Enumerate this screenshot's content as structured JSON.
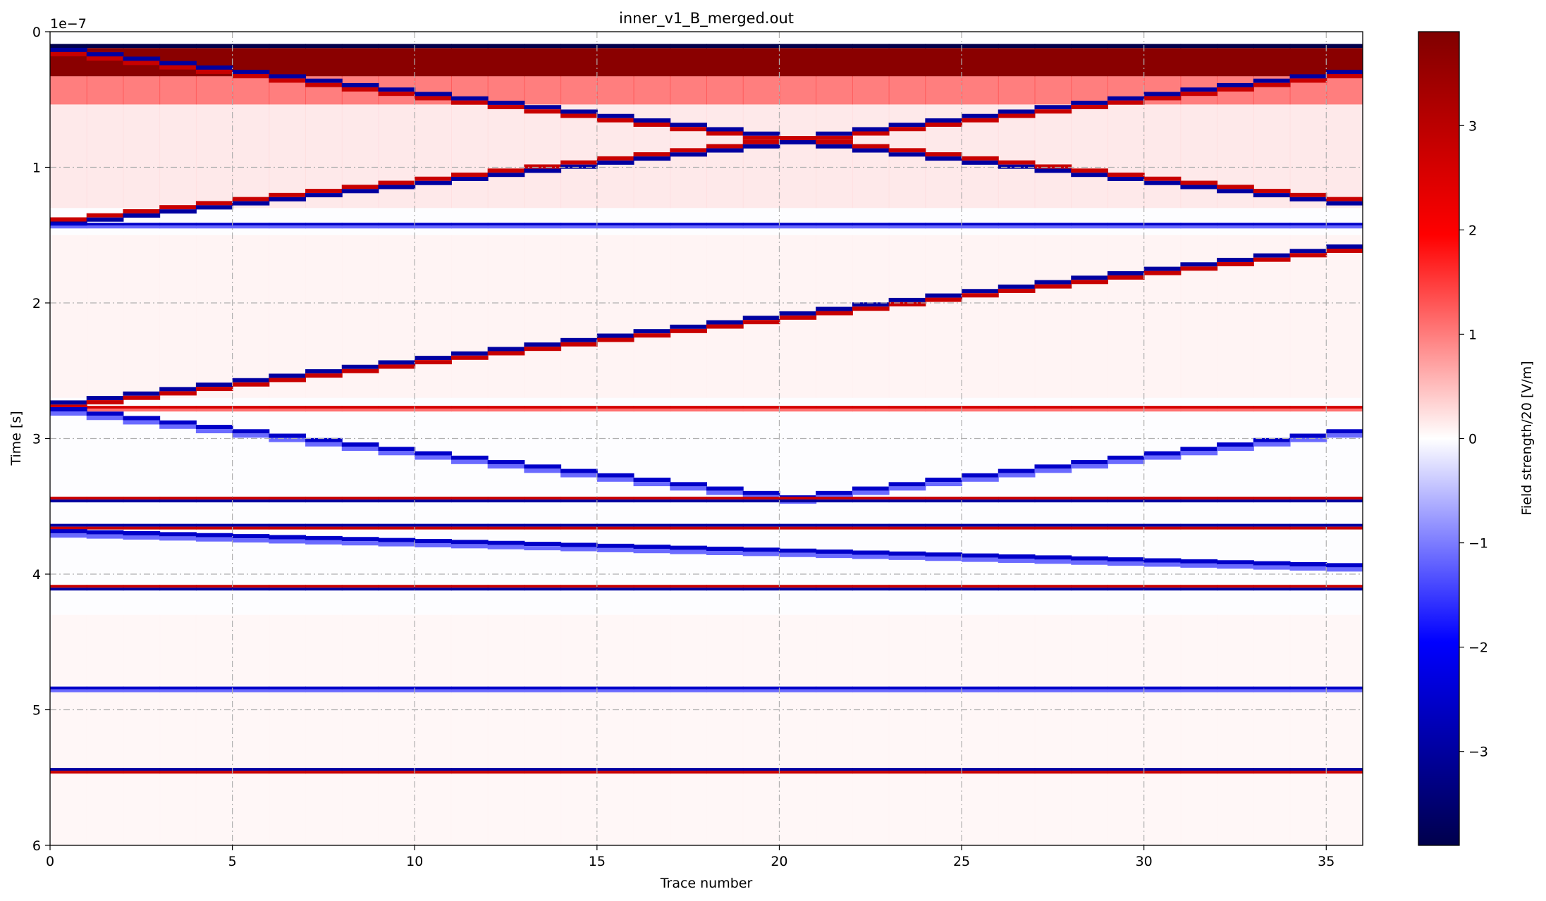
{
  "chart_data": {
    "type": "heatmap",
    "title": "inner_v1_B_merged.out",
    "xlabel": "Trace number",
    "ylabel": "Time [s]",
    "y_offset_text": "1e−7",
    "xlim": [
      0,
      36
    ],
    "ylim": [
      6e-07,
      0
    ],
    "x_ticks": [
      0,
      5,
      10,
      15,
      20,
      25,
      30,
      35
    ],
    "y_ticks": [
      0,
      1,
      2,
      3,
      4,
      5,
      6
    ],
    "grid": true,
    "colormap": "seismic",
    "colorbar": {
      "label": "Field strength/20 [V/m]",
      "range": [
        -3.9,
        3.9
      ],
      "ticks": [
        3,
        2,
        1,
        0,
        -1,
        -2,
        -3
      ],
      "tick_labels": [
        "3",
        "2",
        "1",
        "0",
        "−1",
        "−2",
        "−3"
      ],
      "colors": [
        "#00004c",
        "#0000ff",
        "#ffffff",
        "#ff0000",
        "#800000"
      ]
    },
    "traces": 36,
    "events": [
      {
        "kind": "direct_air_wave",
        "t_start": 1e-08,
        "slope": 0,
        "vshape": false,
        "polarity": "blue-red"
      },
      {
        "kind": "reflection_descending_from_left",
        "t_start": 1.5e-08,
        "t_end": 8e-08,
        "apex_trace": 20,
        "polarity": "blue-red"
      },
      {
        "kind": "reflection_ascending_to_center",
        "t_start": 1.4e-07,
        "t_end": 8e-08,
        "apex_trace": 20,
        "polarity": "red-blue"
      },
      {
        "kind": "flat_horizon",
        "t": 1.43e-07,
        "polarity": "blue"
      },
      {
        "kind": "dipping_reflector",
        "t_left": 2.75e-07,
        "t_right": 1.6e-07,
        "polarity": "blue-red"
      },
      {
        "kind": "flat_horizon",
        "t": 2.78e-07,
        "polarity": "red"
      },
      {
        "kind": "dipping_reflector",
        "t_left": 2.8e-07,
        "t_right": 3.5e-07,
        "apex_trace": 20,
        "polarity": "blue"
      },
      {
        "kind": "flat_horizon",
        "t": 3.45e-07,
        "polarity": "red-blue"
      },
      {
        "kind": "flat_horizon",
        "t": 3.65e-07,
        "polarity": "blue-red"
      },
      {
        "kind": "dipping_reflector",
        "t_left": 3.7e-07,
        "t_right": 3.95e-07,
        "polarity": "blue"
      },
      {
        "kind": "flat_horizon",
        "t": 4.1e-07,
        "polarity": "red-blue"
      },
      {
        "kind": "flat_horizon",
        "t": 4.85e-07,
        "polarity": "blue"
      },
      {
        "kind": "flat_horizon",
        "t": 5.45e-07,
        "polarity": "blue-red"
      }
    ]
  }
}
